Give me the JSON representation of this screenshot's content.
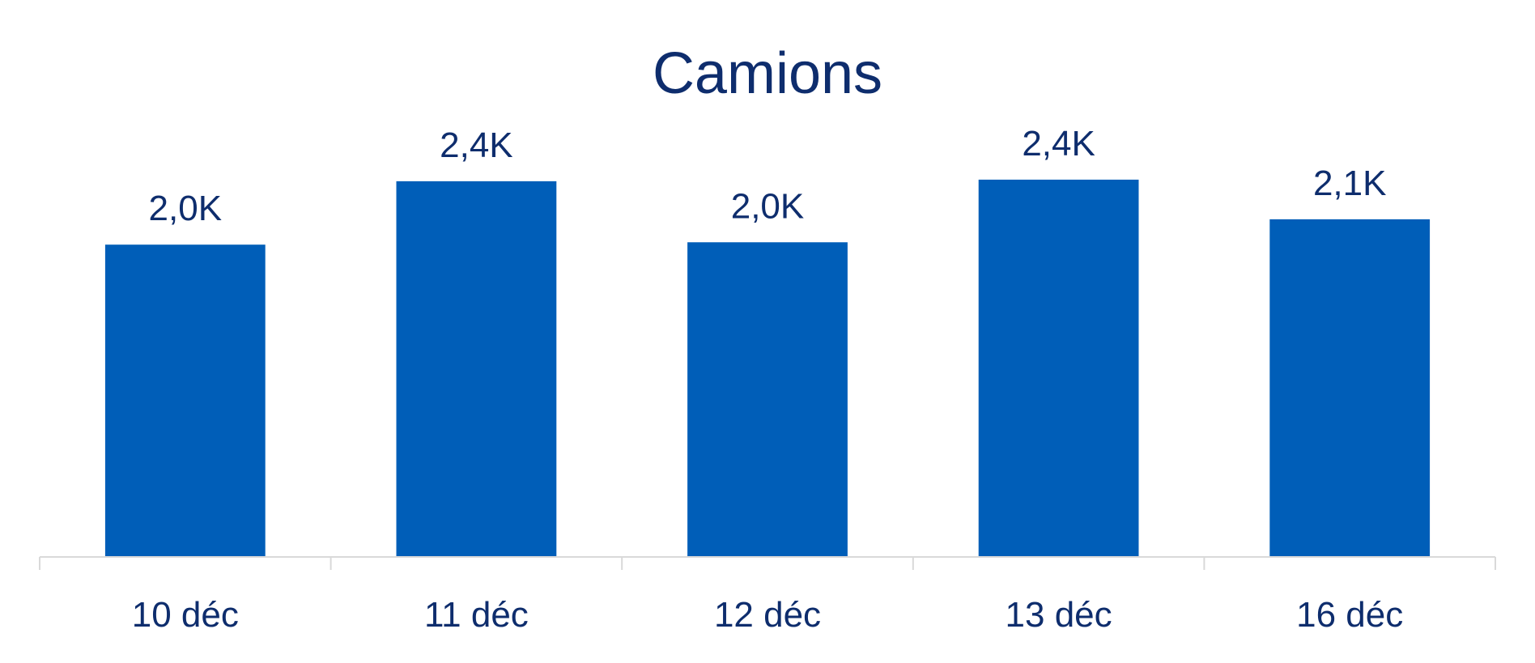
{
  "chart_data": {
    "type": "bar",
    "title": "Camions",
    "categories": [
      "10 déc",
      "11 déc",
      "12 déc",
      "13 déc",
      "16 déc"
    ],
    "values": [
      1970,
      2370,
      1985,
      2380,
      2130
    ],
    "data_labels": [
      "2,0K",
      "2,4K",
      "2,0K",
      "2,4K",
      "2,1K"
    ],
    "xlabel": "",
    "ylabel": "",
    "ylim": [
      0,
      2400
    ],
    "grid": false,
    "legend": "none",
    "colors": {
      "bar": "#005eb8",
      "text": "#0e2d6d",
      "axis": "#d9d9d9"
    }
  }
}
